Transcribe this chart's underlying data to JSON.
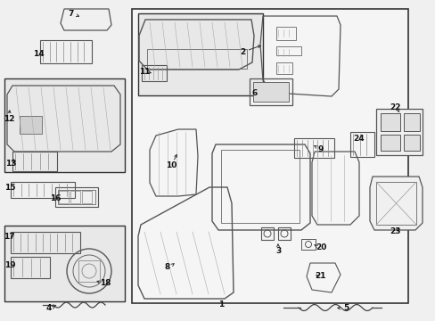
{
  "bg_color": "#f0f0f0",
  "dark": "#333333",
  "mid": "#555555",
  "light_gray": "#ebebeb",
  "part_fill": "#f5f5f5"
}
